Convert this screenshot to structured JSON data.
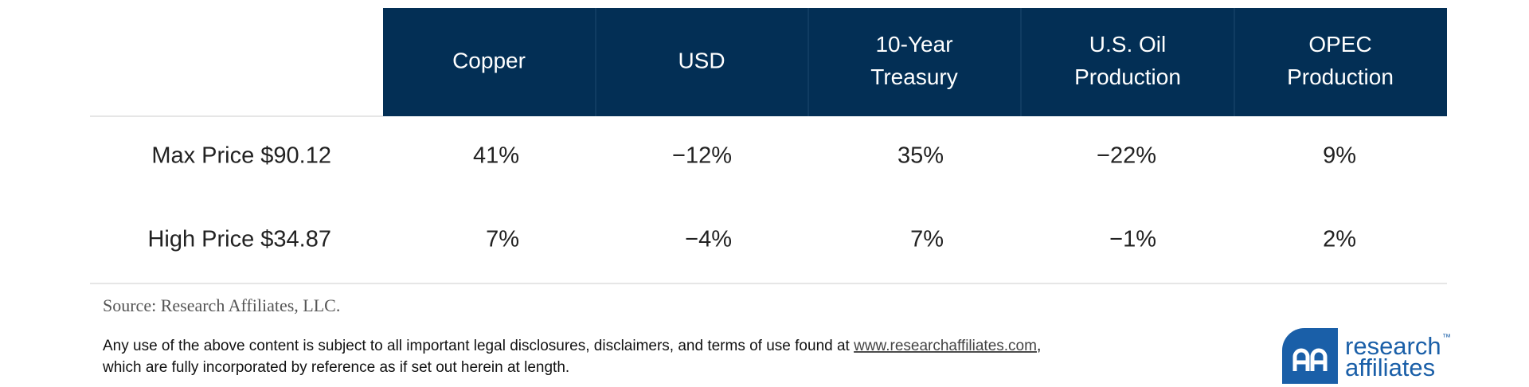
{
  "table": {
    "columns": [
      [
        "Copper"
      ],
      [
        "USD"
      ],
      [
        "10-Year",
        "Treasury"
      ],
      [
        "U.S. Oil",
        "Production"
      ],
      [
        "OPEC",
        "Production"
      ]
    ],
    "rows": [
      {
        "label": "Max Price $90.12",
        "cells": [
          "41%",
          "−12%",
          "35%",
          "−22%",
          "9%"
        ]
      },
      {
        "label": "High Price $34.87",
        "cells": [
          "7%",
          "−4%",
          "7%",
          "−1%",
          "2%"
        ]
      }
    ]
  },
  "source": "Source: Research Affiliates, LLC.",
  "disclaimer": {
    "before": "Any use of the above content is subject to all important legal disclosures, disclaimers, and terms of use found at ",
    "link": "www.researchaffiliates.com",
    "after": ",",
    "line2": "which are fully incorporated by reference as if set out herein at length."
  },
  "logo": {
    "line1": "research",
    "tm": "™",
    "line2": "affiliates"
  }
}
